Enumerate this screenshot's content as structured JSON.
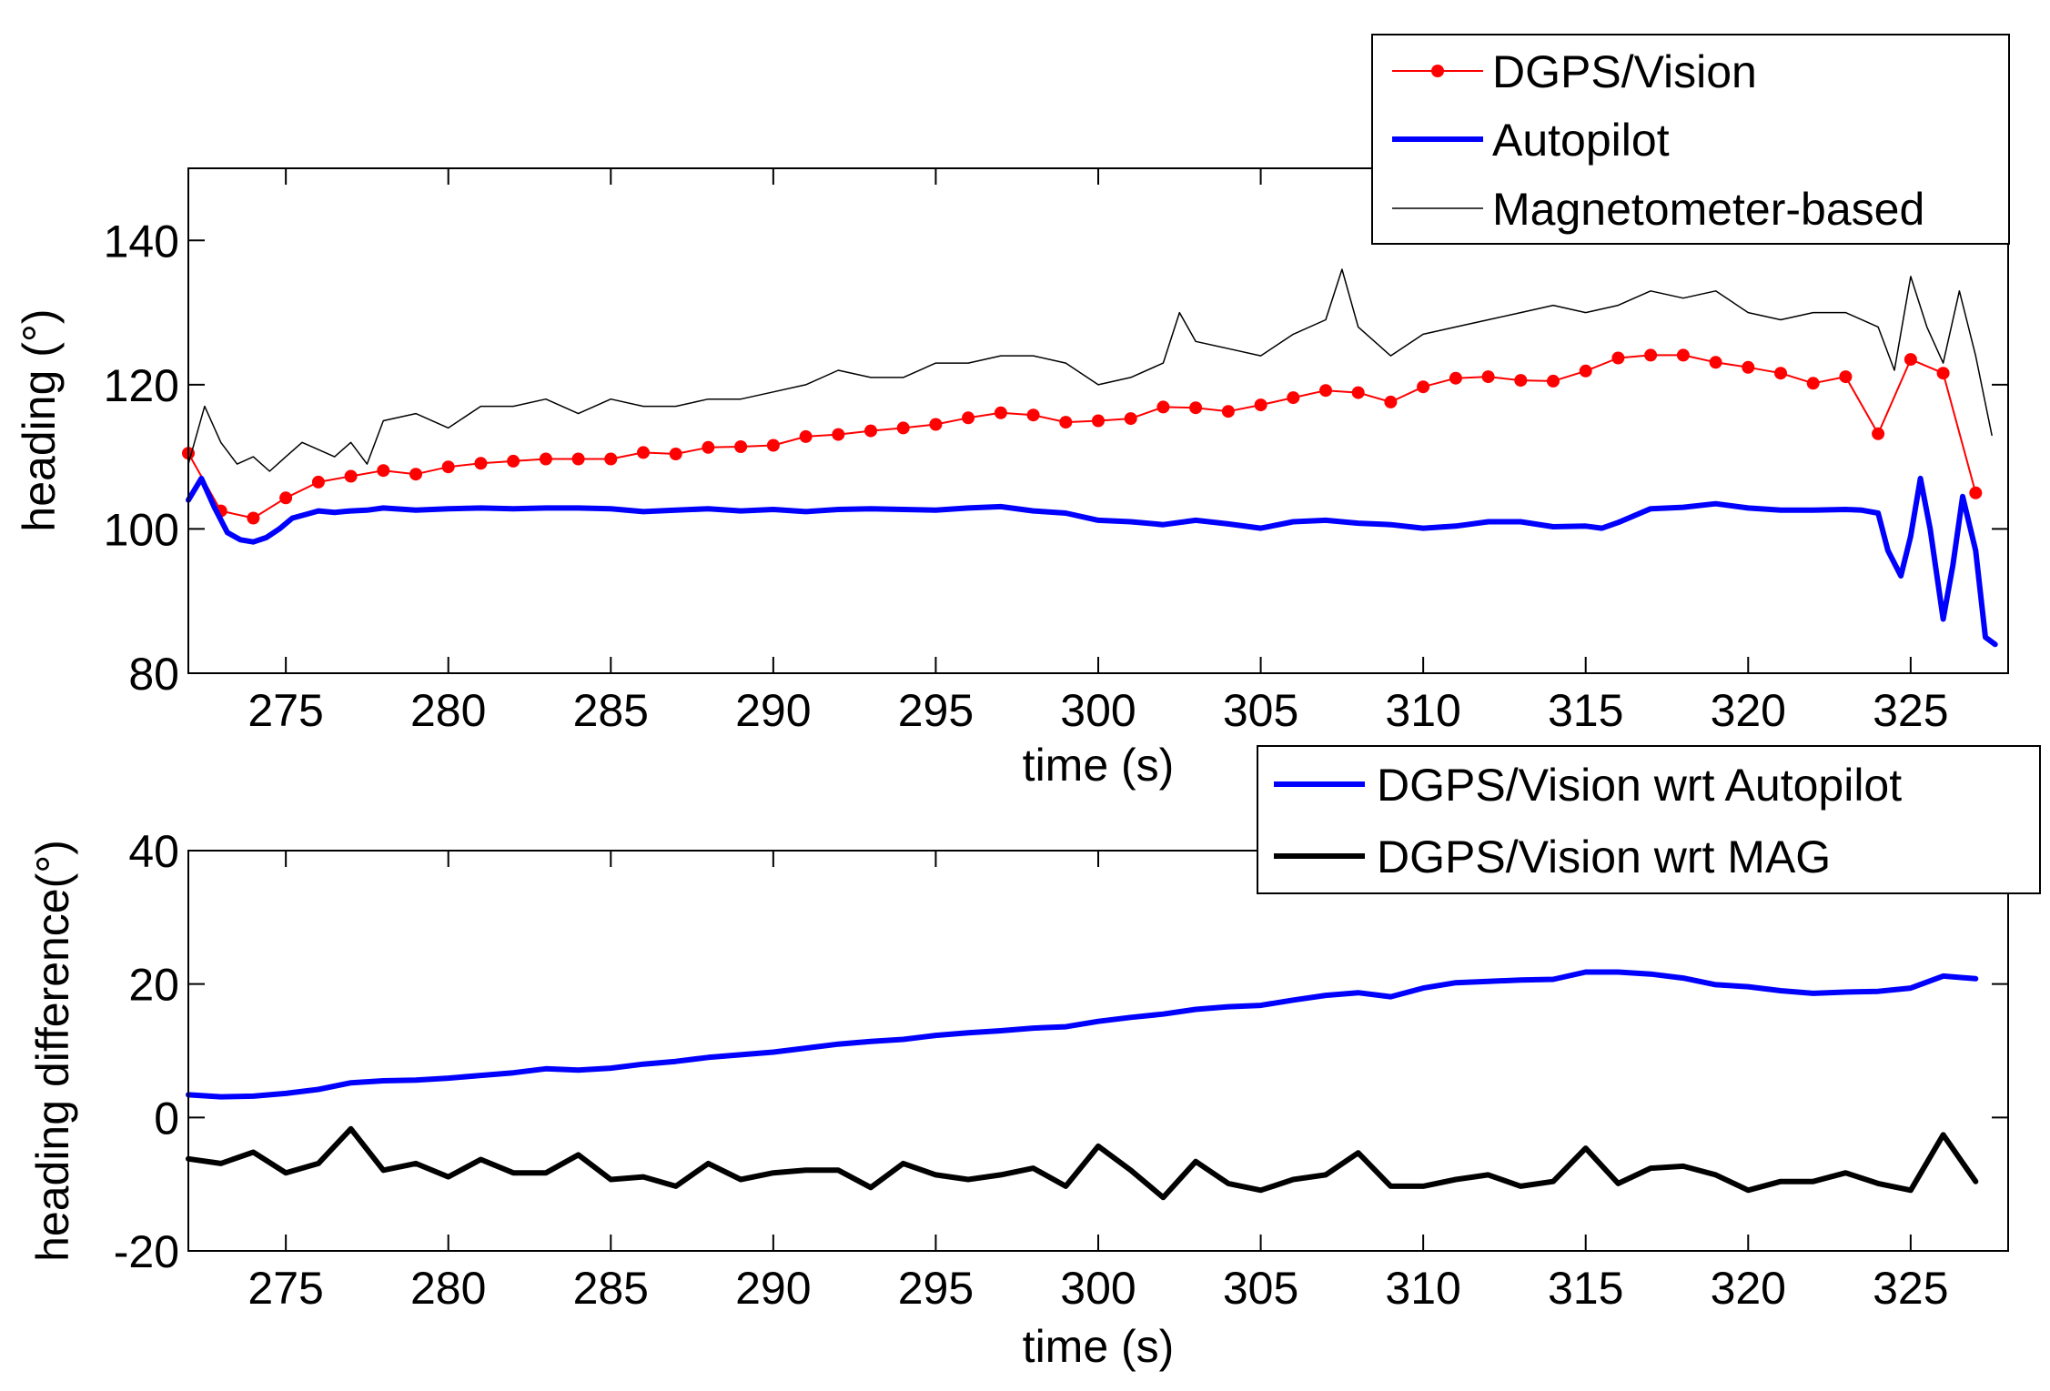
{
  "colors": {
    "dgps": "#ff0000",
    "autopilot": "#0000ff",
    "mag": "#000000",
    "diff_mag": "#000000"
  },
  "chart_data": [
    {
      "type": "line",
      "xlabel": "time (s)",
      "ylabel": "heading (°)",
      "xlim": [
        272,
        328
      ],
      "ylim": [
        80,
        150
      ],
      "xticks": [
        275,
        280,
        285,
        290,
        295,
        300,
        305,
        310,
        315,
        320,
        325
      ],
      "yticks": [
        80,
        100,
        120,
        140
      ],
      "legend_position": "top-right (outside above plot)",
      "series": [
        {
          "name": "DGPS/Vision",
          "style": "red line with dots",
          "x": [
            272,
            273,
            274,
            275,
            276,
            277,
            278,
            279,
            280,
            281,
            282,
            283,
            284,
            285,
            286,
            287,
            288,
            289,
            290,
            291,
            292,
            293,
            294,
            295,
            296,
            297,
            298,
            299,
            300,
            301,
            302,
            303,
            304,
            305,
            306,
            307,
            308,
            309,
            310,
            311,
            312,
            313,
            314,
            315,
            316,
            317,
            318,
            319,
            320,
            321,
            322,
            323,
            324,
            325,
            326,
            327
          ],
          "values": [
            110.5,
            102.5,
            101.5,
            104.3,
            106.5,
            107.3,
            108.1,
            107.6,
            108.6,
            109.1,
            109.4,
            109.7,
            109.7,
            109.7,
            110.6,
            110.4,
            111.3,
            111.4,
            111.6,
            112.8,
            113.1,
            113.6,
            114.0,
            114.5,
            115.4,
            116.1,
            115.8,
            114.8,
            115.0,
            115.3,
            116.9,
            116.8,
            116.3,
            117.2,
            118.2,
            119.2,
            118.9,
            117.6,
            119.7,
            120.9,
            121.1,
            120.6,
            120.5,
            121.9,
            123.7,
            124.1,
            124.1,
            123.1,
            122.4,
            121.6,
            120.2,
            121.1,
            113.2,
            123.5,
            121.6,
            105.0
          ]
        },
        {
          "name": "Autopilot",
          "style": "thick blue line",
          "x": [
            272,
            272.4,
            272.8,
            273.2,
            273.6,
            274,
            274.4,
            274.8,
            275.2,
            275.6,
            276,
            276.5,
            277,
            277.5,
            278,
            279,
            280,
            281,
            282,
            283,
            284,
            285,
            286,
            287,
            288,
            289,
            290,
            291,
            292,
            293,
            294,
            295,
            296,
            297,
            298,
            299,
            300,
            301,
            302,
            303,
            304,
            305,
            306,
            307,
            308,
            309,
            310,
            311,
            312,
            313,
            314,
            315,
            315.5,
            316,
            317,
            318,
            319,
            320,
            321,
            322,
            323,
            323.5,
            324,
            324.3,
            324.7,
            325,
            325.3,
            325.6,
            326,
            326.3,
            326.6,
            327,
            327.3,
            327.6
          ],
          "values": [
            104,
            107,
            103,
            99.5,
            98.5,
            98.2,
            98.8,
            100,
            101.5,
            102,
            102.5,
            102.3,
            102.5,
            102.6,
            102.9,
            102.6,
            102.8,
            102.9,
            102.8,
            102.9,
            102.9,
            102.8,
            102.4,
            102.6,
            102.8,
            102.5,
            102.7,
            102.4,
            102.7,
            102.8,
            102.7,
            102.6,
            102.9,
            103.1,
            102.5,
            102.2,
            101.2,
            101.0,
            100.6,
            101.2,
            100.7,
            100.1,
            101.0,
            101.2,
            100.8,
            100.6,
            100.1,
            100.4,
            101.0,
            101.0,
            100.3,
            100.4,
            100.1,
            100.9,
            102.8,
            103.0,
            103.5,
            102.9,
            102.6,
            102.6,
            102.7,
            102.6,
            102.2,
            97,
            93.5,
            99,
            107,
            100,
            87.5,
            95,
            104.5,
            97,
            85,
            84
          ]
        },
        {
          "name": "Magnetometer-based",
          "style": "thin black noisy line",
          "x": [
            272,
            272.5,
            273,
            273.5,
            274,
            274.5,
            275,
            275.5,
            276,
            276.5,
            277,
            277.5,
            278,
            279,
            280,
            281,
            282,
            283,
            284,
            285,
            286,
            287,
            288,
            289,
            290,
            291,
            292,
            293,
            294,
            295,
            296,
            297,
            298,
            299,
            300,
            301,
            302,
            302.5,
            303,
            304,
            305,
            306,
            307,
            307.5,
            308,
            309,
            310,
            311,
            312,
            313,
            314,
            315,
            316,
            317,
            318,
            319,
            320,
            321,
            322,
            323,
            324,
            324.5,
            325,
            325.5,
            326,
            326.5,
            327,
            327.5
          ],
          "values": [
            109,
            117,
            112,
            109,
            110,
            108,
            110,
            112,
            111,
            110,
            112,
            109,
            115,
            116,
            114,
            117,
            117,
            118,
            116,
            118,
            117,
            117,
            118,
            118,
            119,
            120,
            122,
            121,
            121,
            123,
            123,
            124,
            124,
            123,
            120,
            121,
            123,
            130,
            126,
            125,
            124,
            127,
            129,
            136,
            128,
            124,
            127,
            128,
            129,
            130,
            131,
            130,
            131,
            133,
            132,
            133,
            130,
            129,
            130,
            130,
            128,
            122,
            135,
            128,
            123,
            133,
            124,
            113
          ]
        }
      ]
    },
    {
      "type": "line",
      "xlabel": "time (s)",
      "ylabel": "heading difference(°)",
      "xlim": [
        272,
        328
      ],
      "ylim": [
        -20,
        40
      ],
      "xticks": [
        275,
        280,
        285,
        290,
        295,
        300,
        305,
        310,
        315,
        320,
        325
      ],
      "yticks": [
        -20,
        0,
        20,
        40
      ],
      "legend_position": "top-right",
      "series": [
        {
          "name": "DGPS/Vision wrt Autopilot",
          "style": "thick blue line",
          "x": [
            272,
            273,
            274,
            275,
            276,
            277,
            278,
            279,
            280,
            281,
            282,
            283,
            284,
            285,
            286,
            287,
            288,
            289,
            290,
            291,
            292,
            293,
            294,
            295,
            296,
            297,
            298,
            299,
            300,
            301,
            302,
            303,
            304,
            305,
            306,
            307,
            308,
            309,
            310,
            311,
            312,
            313,
            314,
            315,
            316,
            317,
            318,
            319,
            320,
            321,
            322,
            323,
            324,
            325,
            326,
            327
          ],
          "values": [
            3.4,
            3.1,
            3.2,
            3.6,
            4.2,
            5.2,
            5.5,
            5.6,
            5.9,
            6.3,
            6.7,
            7.3,
            7.1,
            7.4,
            8.0,
            8.4,
            9.0,
            9.4,
            9.8,
            10.4,
            11.0,
            11.4,
            11.7,
            12.3,
            12.7,
            13.0,
            13.4,
            13.6,
            14.4,
            15.0,
            15.5,
            16.2,
            16.6,
            16.8,
            17.6,
            18.3,
            18.7,
            18.1,
            19.4,
            20.2,
            20.4,
            20.6,
            20.7,
            21.8,
            21.8,
            21.5,
            20.9,
            19.9,
            19.6,
            19.0,
            18.6,
            18.8,
            18.9,
            19.4,
            21.2,
            20.8
          ]
        },
        {
          "name": "DGPS/Vision wrt MAG",
          "style": "thick black line",
          "x": [
            272,
            273,
            274,
            275,
            276,
            277,
            278,
            279,
            280,
            281,
            282,
            283,
            284,
            285,
            286,
            287,
            288,
            289,
            290,
            291,
            292,
            293,
            294,
            295,
            296,
            297,
            298,
            299,
            300,
            301,
            302,
            303,
            304,
            305,
            306,
            307,
            308,
            309,
            310,
            311,
            312,
            313,
            314,
            315,
            316,
            317,
            318,
            319,
            320,
            321,
            322,
            323,
            324,
            325,
            326,
            327
          ],
          "values": [
            -6.2,
            -6.9,
            -5.2,
            -8.3,
            -6.9,
            -1.7,
            -7.9,
            -6.9,
            -8.9,
            -6.3,
            -8.3,
            -8.3,
            -5.6,
            -9.3,
            -8.9,
            -10.3,
            -6.9,
            -9.3,
            -8.3,
            -7.9,
            -7.9,
            -10.5,
            -6.9,
            -8.6,
            -9.3,
            -8.6,
            -7.6,
            -10.3,
            -4.3,
            -7.9,
            -12.0,
            -6.6,
            -9.9,
            -10.9,
            -9.3,
            -8.6,
            -5.3,
            -10.3,
            -10.3,
            -9.3,
            -8.6,
            -10.3,
            -9.6,
            -4.6,
            -9.9,
            -7.6,
            -7.3,
            -8.6,
            -10.9,
            -9.6,
            -9.6,
            -8.3,
            -9.9,
            -10.9,
            -2.6,
            -9.6
          ]
        }
      ]
    }
  ]
}
